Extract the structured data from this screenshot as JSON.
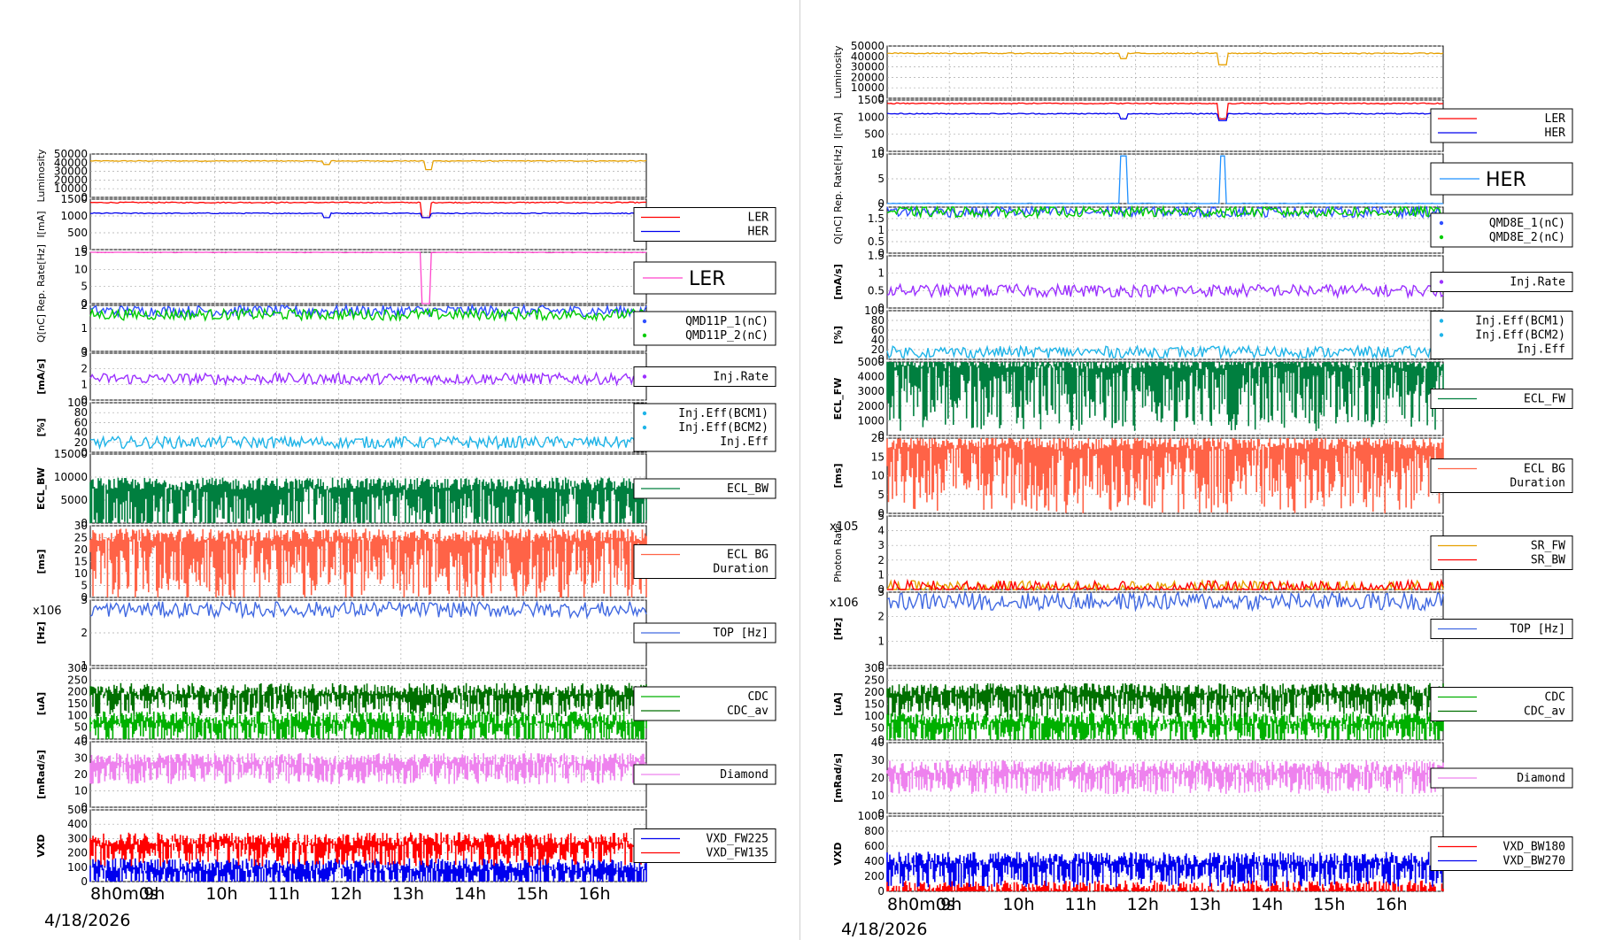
{
  "date": "4/18/2026",
  "x_ticks": [
    "8h0m0s",
    "9h",
    "10h",
    "11h",
    "12h",
    "13h",
    "14h",
    "15h",
    "16h"
  ],
  "colors": {
    "luminosity": "#e6a000",
    "ler": "#ff0000",
    "her": "#0000ee",
    "rep_ler": "#ff44cc",
    "rep_her": "#1e90ff",
    "q1": "#3050ff",
    "q2": "#00cc00",
    "injrate": "#9b30ff",
    "injeff": "#1fb4e8",
    "ecl_bw": "#007f3f",
    "ecl_bg": "#ff6347",
    "top": "#4169e1",
    "cdc": "#00b000",
    "cdc_av": "#007000",
    "diamond": "#ee82ee",
    "vxd_a": "#0000ee",
    "vxd_b": "#ff0000",
    "sr_fw": "#e6a000",
    "sr_bw": "#ff0000"
  },
  "chart_data": [
    {
      "panel": "left",
      "type": "line",
      "x_range": [
        "8h0m0s",
        "16h55m"
      ],
      "subplots": [
        {
          "ylabel": "Luminosity",
          "yticks": [
            "50000",
            "40000",
            "30000",
            "20000",
            "10000",
            "0"
          ],
          "ylim": [
            0,
            50000
          ],
          "series": [
            {
              "name": "",
              "color_key": "luminosity",
              "typical": 42000,
              "dips": [
                [
                  11.8,
                  38000
                ],
                [
                  13.45,
                  32000
                ]
              ]
            }
          ],
          "legend": []
        },
        {
          "ylabel": "I[mA]",
          "yticks": [
            "1500",
            "1000",
            "500",
            "0"
          ],
          "ylim": [
            0,
            1500
          ],
          "series": [
            {
              "name": "LER",
              "color_key": "ler",
              "typical": 1400,
              "dips": [
                [
                  13.4,
                  950
                ]
              ]
            },
            {
              "name": "HER",
              "color_key": "her",
              "typical": 1080,
              "dips": [
                [
                  11.8,
                  950
                ],
                [
                  13.4,
                  950
                ]
              ]
            }
          ],
          "legend": [
            "LER",
            "HER"
          ]
        },
        {
          "ylabel": "Rep. Rate[Hz]",
          "yticks": [
            "15",
            "10",
            "5",
            "0"
          ],
          "ylim": [
            0,
            15
          ],
          "series": [
            {
              "name": "LER",
              "color_key": "rep_ler",
              "typical": 15,
              "dips": [
                [
                  13.4,
                  0
                ]
              ]
            }
          ],
          "legend": [
            "LER"
          ],
          "big_legend": true
        },
        {
          "ylabel": "Q[nC]",
          "yticks": [
            "2",
            "1",
            "0"
          ],
          "ylim": [
            0,
            2.5
          ],
          "series": [
            {
              "name": "QMD11P_1(nC)",
              "color_key": "q1",
              "typical": 2.2
            },
            {
              "name": "QMD11P_2(nC)",
              "color_key": "q2",
              "typical": 2.0
            }
          ],
          "legend": [
            "QMD11P_1(nC)",
            "QMD11P_2(nC)"
          ]
        },
        {
          "ylabel": "[mA/s]",
          "yticks": [
            "3",
            "2",
            "1",
            "0"
          ],
          "ylim": [
            0,
            3.3
          ],
          "series": [
            {
              "name": "Inj.Rate",
              "color_key": "injrate",
              "typical": 1.5
            }
          ],
          "legend": [
            "Inj.Rate"
          ]
        },
        {
          "ylabel": "[%]",
          "yticks": [
            "100",
            "80",
            "60",
            "40",
            "20",
            "0"
          ],
          "ylim": [
            0,
            100
          ],
          "series": [
            {
              "name": "Inj.Eff",
              "color_key": "injeff",
              "typical": 20
            }
          ],
          "legend": [
            "Inj.Eff(BCM1)",
            "Inj.Eff(BCM2)",
            "Inj.Eff"
          ]
        },
        {
          "ylabel": "ECL_BW",
          "yticks": [
            "15000",
            "10000",
            "5000",
            "0"
          ],
          "ylim": [
            0,
            15000
          ],
          "series": [
            {
              "name": "ECL_BW",
              "color_key": "ecl_bw",
              "typical": 8000
            }
          ],
          "legend": [
            "ECL_BW"
          ]
        },
        {
          "ylabel": "[ms]",
          "yticks": [
            "30",
            "25",
            "20",
            "15",
            "10",
            "5",
            "0"
          ],
          "ylim": [
            0,
            30
          ],
          "series": [
            {
              "name": "ECL BG Duration",
              "color_key": "ecl_bg",
              "typical": 25
            }
          ],
          "legend": [
            "ECL BG",
            "Duration"
          ]
        },
        {
          "ylabel": "[Hz]",
          "multiplier": "x10^6",
          "yticks": [
            "3",
            "2",
            "1"
          ],
          "ylim": [
            0,
            4.2
          ],
          "series": [
            {
              "name": "TOP [Hz]",
              "color_key": "top",
              "typical": 3.6
            }
          ],
          "legend": [
            "TOP [Hz]"
          ]
        },
        {
          "ylabel": "[uA]",
          "yticks": [
            "300",
            "250",
            "200",
            "150",
            "100",
            "50",
            "0"
          ],
          "ylim": [
            0,
            300
          ],
          "series": [
            {
              "name": "CDC",
              "color_key": "cdc",
              "typical": 80
            },
            {
              "name": "CDC_av",
              "color_key": "cdc_av",
              "typical": 200
            }
          ],
          "legend": [
            "CDC",
            "CDC_av"
          ]
        },
        {
          "ylabel": "[mRad/s]",
          "yticks": [
            "40",
            "30",
            "20",
            "10",
            "0"
          ],
          "ylim": [
            0,
            40
          ],
          "series": [
            {
              "name": "Diamond",
              "color_key": "diamond",
              "typical": 28
            }
          ],
          "legend": [
            "Diamond"
          ]
        },
        {
          "ylabel": "VXD",
          "yticks": [
            "500",
            "400",
            "300",
            "200",
            "100",
            "0"
          ],
          "ylim": [
            0,
            500
          ],
          "series": [
            {
              "name": "VXD_FW225",
              "color_key": "vxd_a",
              "typical": 100
            },
            {
              "name": "VXD_FW135",
              "color_key": "vxd_b",
              "typical": 280
            }
          ],
          "legend": [
            "VXD_FW225",
            "VXD_FW135"
          ]
        }
      ]
    },
    {
      "panel": "right",
      "type": "line",
      "x_range": [
        "8h0m0s",
        "16h55m"
      ],
      "subplots": [
        {
          "ylabel": "Luminosity",
          "yticks": [
            "50000",
            "40000",
            "30000",
            "20000",
            "10000",
            "0"
          ],
          "ylim": [
            0,
            50000
          ],
          "series": [
            {
              "name": "",
              "color_key": "luminosity",
              "typical": 43000,
              "dips": [
                [
                  11.8,
                  38000
                ],
                [
                  13.4,
                  32000
                ]
              ]
            }
          ],
          "legend": []
        },
        {
          "ylabel": "I[mA]",
          "yticks": [
            "1500",
            "1000",
            "500",
            "0"
          ],
          "ylim": [
            0,
            1500
          ],
          "series": [
            {
              "name": "LER",
              "color_key": "ler",
              "typical": 1400,
              "dips": [
                [
                  13.4,
                  950
                ]
              ]
            },
            {
              "name": "HER",
              "color_key": "her",
              "typical": 1100,
              "dips": [
                [
                  11.8,
                  950
                ],
                [
                  13.4,
                  900
                ]
              ]
            }
          ],
          "legend": [
            "LER",
            "HER"
          ]
        },
        {
          "ylabel": "Rep. Rate[Hz]",
          "yticks": [
            "10",
            "5",
            "0"
          ],
          "ylim": [
            0,
            13
          ],
          "series": [
            {
              "name": "HER",
              "color_key": "rep_her",
              "typical": 0,
              "spikes": [
                [
                  11.8,
                  12.5
                ],
                [
                  13.4,
                  12.5
                ]
              ]
            }
          ],
          "legend": [
            "HER"
          ],
          "big_legend": true
        },
        {
          "ylabel": "Q[nC]",
          "yticks": [
            "2",
            "1.5",
            "1",
            "0.5",
            "0"
          ],
          "ylim": [
            0,
            2
          ],
          "series": [
            {
              "name": "QMD8E_1(nC)",
              "color_key": "q1",
              "typical": 1.8
            },
            {
              "name": "QMD8E_2(nC)",
              "color_key": "q2",
              "typical": 1.8
            }
          ],
          "legend": [
            "QMD8E_1(nC)",
            "QMD8E_2(nC)"
          ]
        },
        {
          "ylabel": "[mA/s]",
          "yticks": [
            "1.5",
            "1",
            "0.5",
            "0"
          ],
          "ylim": [
            0,
            1.8
          ],
          "series": [
            {
              "name": "Inj.Rate",
              "color_key": "injrate",
              "typical": 0.6
            }
          ],
          "legend": [
            "Inj.Rate"
          ]
        },
        {
          "ylabel": "[%]",
          "yticks": [
            "100",
            "80",
            "60",
            "40",
            "20",
            "0"
          ],
          "ylim": [
            0,
            100
          ],
          "series": [
            {
              "name": "Inj.Eff",
              "color_key": "injeff",
              "typical": 15
            }
          ],
          "legend": [
            "Inj.Eff(BCM1)",
            "Inj.Eff(BCM2)",
            "Inj.Eff"
          ]
        },
        {
          "ylabel": "ECL_FW",
          "yticks": [
            "5000",
            "4000",
            "3000",
            "2000",
            "1000",
            "0"
          ],
          "ylim": [
            0,
            5000
          ],
          "series": [
            {
              "name": "ECL_FW",
              "color_key": "ecl_bw",
              "typical": 4800
            }
          ],
          "legend": [
            "ECL_FW"
          ]
        },
        {
          "ylabel": "[ms]",
          "yticks": [
            "20",
            "15",
            "10",
            "5",
            "0"
          ],
          "ylim": [
            0,
            20
          ],
          "series": [
            {
              "name": "ECL BG Duration",
              "color_key": "ecl_bg",
              "typical": 18
            }
          ],
          "legend": [
            "ECL BG",
            "Duration"
          ]
        },
        {
          "ylabel": "Photon Rate",
          "multiplier": "x10^5",
          "yticks": [
            "5",
            "4",
            "3",
            "2",
            "1",
            "0"
          ],
          "ylim": [
            0,
            5
          ],
          "series": [
            {
              "name": "SR_FW",
              "color_key": "sr_fw",
              "typical": 0
            },
            {
              "name": "SR_BW",
              "color_key": "sr_bw",
              "typical": 0
            }
          ],
          "legend": [
            "SR_FW",
            "SR_BW"
          ]
        },
        {
          "ylabel": "[Hz]",
          "multiplier": "x10^6",
          "yticks": [
            "3",
            "2",
            "1",
            "0"
          ],
          "ylim": [
            0,
            4
          ],
          "series": [
            {
              "name": "TOP [Hz]",
              "color_key": "top",
              "typical": 3.5
            }
          ],
          "legend": [
            "TOP [Hz]"
          ]
        },
        {
          "ylabel": "[uA]",
          "yticks": [
            "300",
            "250",
            "200",
            "150",
            "100",
            "50",
            "0"
          ],
          "ylim": [
            0,
            300
          ],
          "series": [
            {
              "name": "CDC",
              "color_key": "cdc",
              "typical": 80
            },
            {
              "name": "CDC_av",
              "color_key": "cdc_av",
              "typical": 200
            }
          ],
          "legend": [
            "CDC",
            "CDC_av"
          ]
        },
        {
          "ylabel": "[mRad/s]",
          "yticks": [
            "40",
            "30",
            "20",
            "10",
            "0"
          ],
          "ylim": [
            0,
            45
          ],
          "series": [
            {
              "name": "Diamond",
              "color_key": "diamond",
              "typical": 28
            }
          ],
          "legend": [
            "Diamond"
          ]
        },
        {
          "ylabel": "VXD",
          "yticks": [
            "1000",
            "800",
            "600",
            "400",
            "200",
            "0"
          ],
          "ylim": [
            0,
            1000
          ],
          "series": [
            {
              "name": "VXD_BW180",
              "color_key": "vxd_b",
              "typical": 20
            },
            {
              "name": "VXD_BW270",
              "color_key": "vxd_a",
              "typical": 400
            }
          ],
          "legend": [
            "VXD_BW180",
            "VXD_BW270"
          ]
        }
      ]
    }
  ]
}
